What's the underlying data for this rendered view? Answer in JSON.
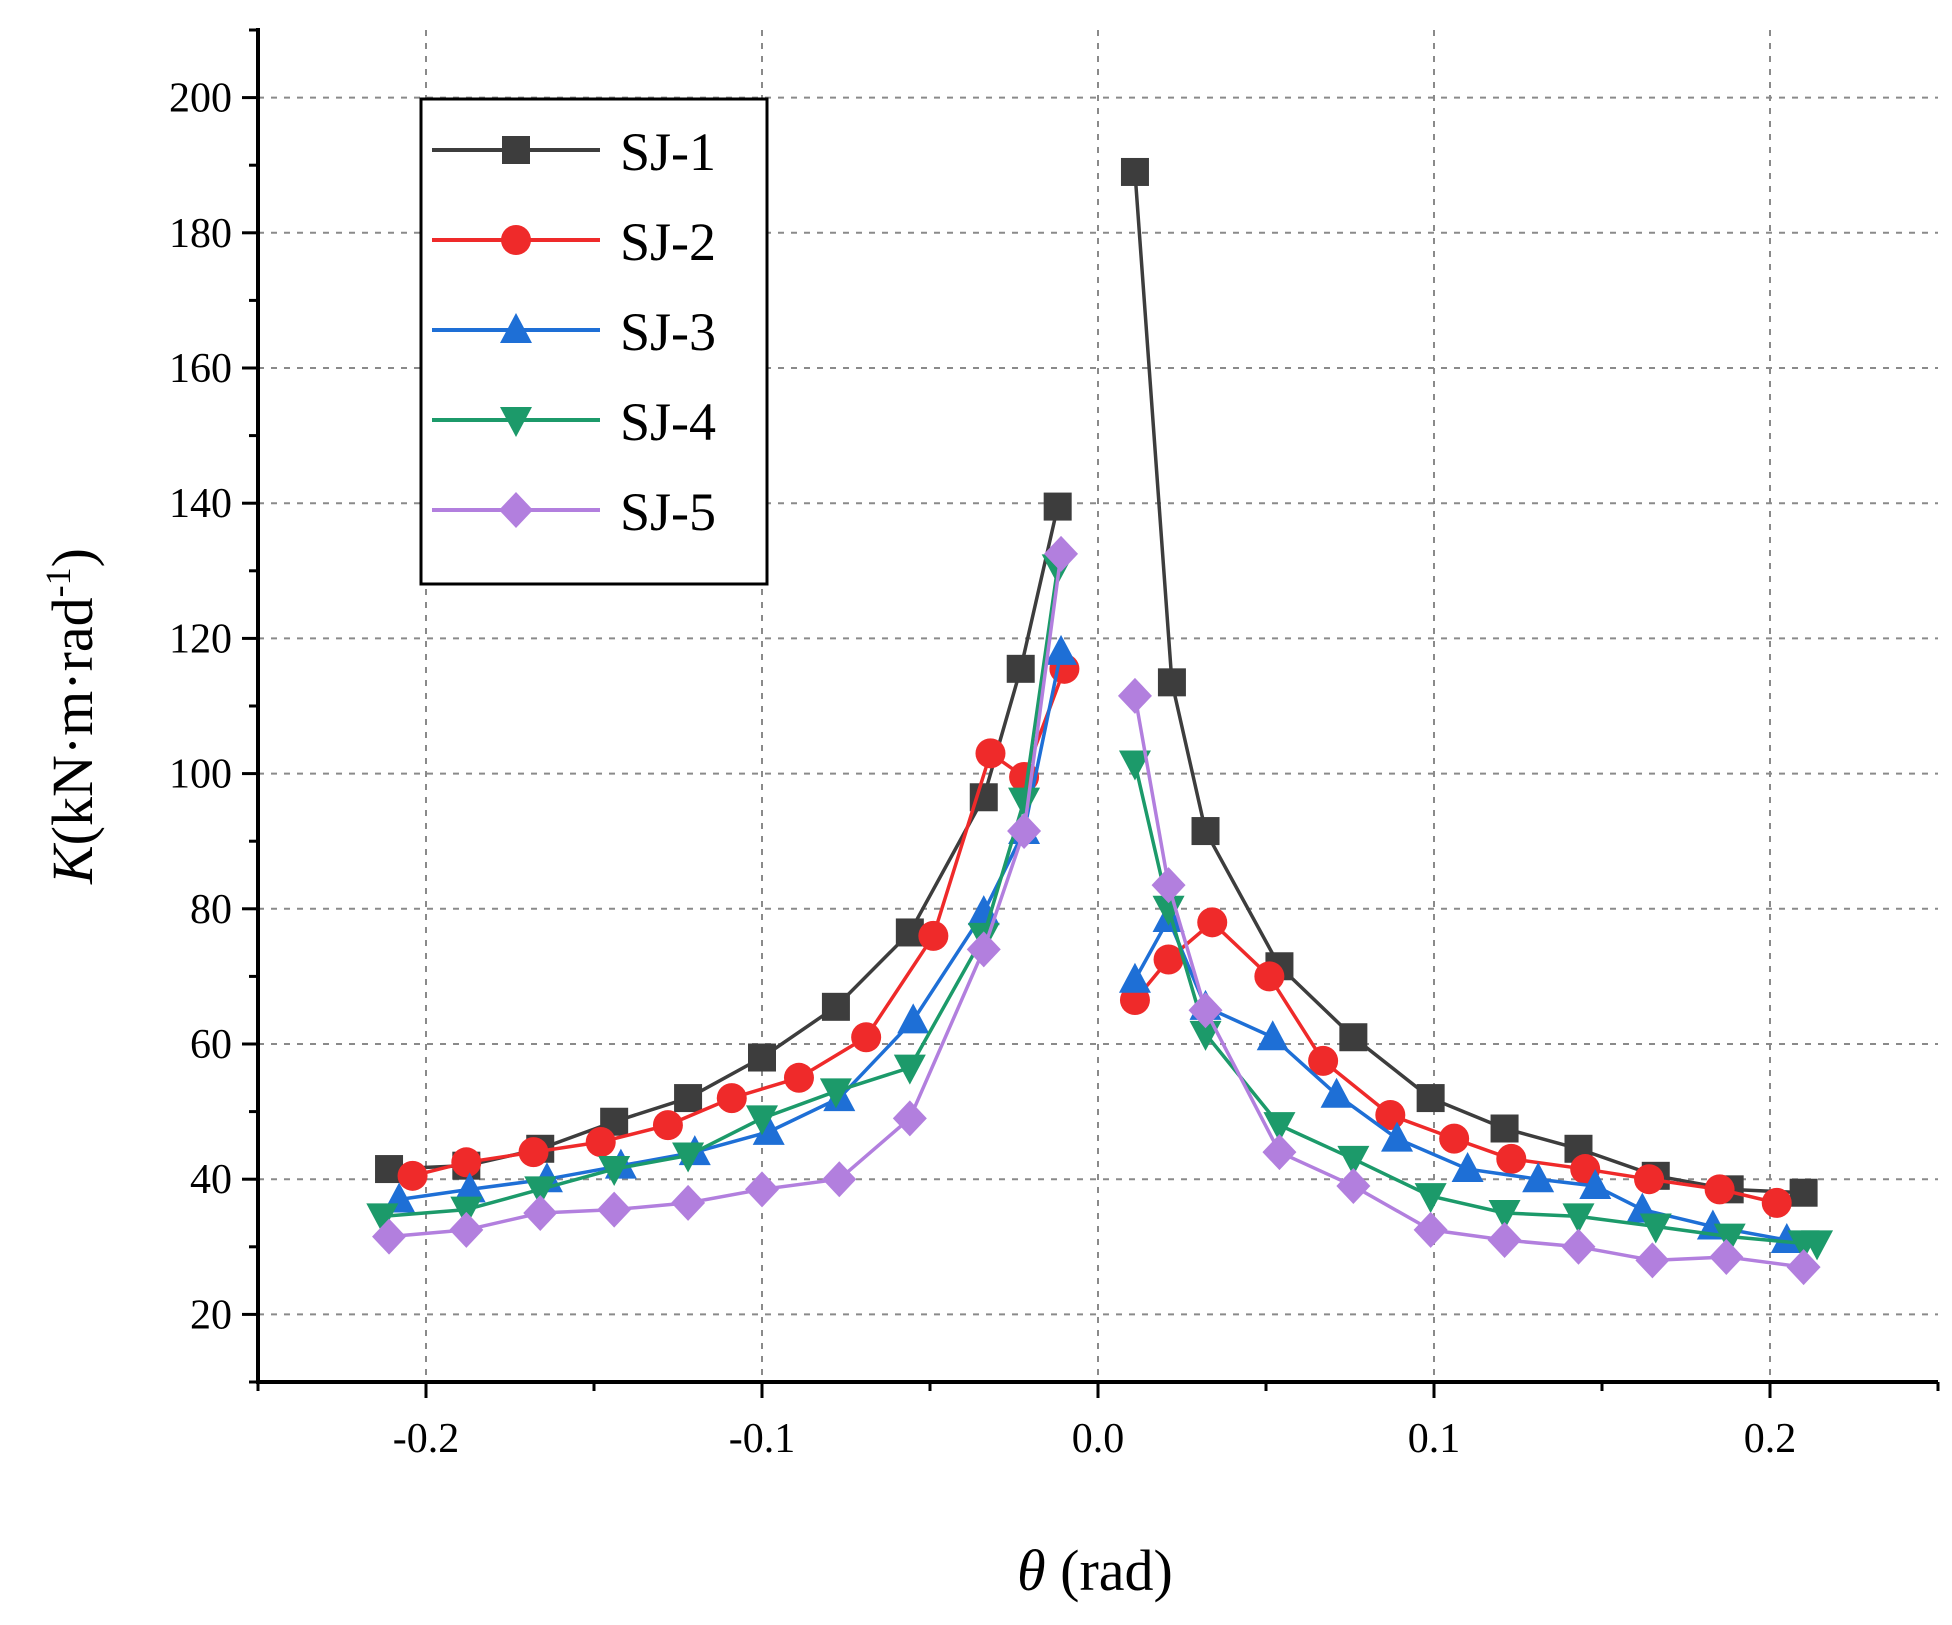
{
  "chart_data": {
    "type": "line",
    "xlabel": {
      "symbol": "θ",
      "unit": " (rad)"
    },
    "ylabel": {
      "symbol": "K",
      "unit": "(kN·m·rad",
      "sup": "-1",
      "close": ")"
    },
    "xlim": [
      -0.25,
      0.25
    ],
    "ylim": [
      10,
      210
    ],
    "x_ticks": [
      -0.2,
      -0.1,
      0.0,
      0.1,
      0.2
    ],
    "x_tick_labels": [
      "-0.2",
      "-0.1",
      "0.0",
      "0.1",
      "0.2"
    ],
    "y_ticks": [
      20,
      40,
      60,
      80,
      100,
      120,
      140,
      160,
      180,
      200
    ],
    "y_tick_labels": [
      "20",
      "40",
      "60",
      "80",
      "100",
      "120",
      "140",
      "160",
      "180",
      "200"
    ],
    "grid": true,
    "legend_position": "top-left",
    "series": [
      {
        "name": "SJ-1",
        "color": "#3d3d3d",
        "marker": "square",
        "negative": [
          [
            -0.211,
            41.5
          ],
          [
            -0.188,
            42
          ],
          [
            -0.166,
            44.5
          ],
          [
            -0.144,
            48.5
          ],
          [
            -0.122,
            52
          ],
          [
            -0.1,
            58
          ],
          [
            -0.078,
            65.5
          ],
          [
            -0.056,
            76.5
          ],
          [
            -0.034,
            96.5
          ],
          [
            -0.023,
            115.5
          ],
          [
            -0.012,
            139.5
          ]
        ],
        "positive": [
          [
            0.011,
            189
          ],
          [
            0.022,
            113.5
          ],
          [
            0.032,
            91.5
          ],
          [
            0.054,
            71.5
          ],
          [
            0.076,
            61
          ],
          [
            0.099,
            52
          ],
          [
            0.121,
            47.5
          ],
          [
            0.143,
            44.5
          ],
          [
            0.166,
            40.5
          ],
          [
            0.188,
            38.5
          ],
          [
            0.21,
            38
          ]
        ]
      },
      {
        "name": "SJ-2",
        "color": "#ef2a2a",
        "marker": "circle",
        "negative": [
          [
            -0.204,
            40.5
          ],
          [
            -0.188,
            42.5
          ],
          [
            -0.168,
            44
          ],
          [
            -0.148,
            45.5
          ],
          [
            -0.128,
            48
          ],
          [
            -0.109,
            52
          ],
          [
            -0.089,
            55
          ],
          [
            -0.069,
            61
          ],
          [
            -0.049,
            76
          ],
          [
            -0.032,
            103
          ],
          [
            -0.022,
            99.5
          ],
          [
            -0.01,
            115.5
          ]
        ],
        "positive": [
          [
            0.011,
            66.5
          ],
          [
            0.021,
            72.5
          ],
          [
            0.034,
            78
          ],
          [
            0.051,
            70
          ],
          [
            0.067,
            57.5
          ],
          [
            0.087,
            49.5
          ],
          [
            0.106,
            46
          ],
          [
            0.123,
            43
          ],
          [
            0.145,
            41.5
          ],
          [
            0.164,
            40
          ],
          [
            0.185,
            38.5
          ],
          [
            0.202,
            36.5
          ]
        ]
      },
      {
        "name": "SJ-3",
        "color": "#1e6fd6",
        "marker": "triangle-up",
        "negative": [
          [
            -0.208,
            37
          ],
          [
            -0.187,
            38.5
          ],
          [
            -0.164,
            40
          ],
          [
            -0.142,
            42
          ],
          [
            -0.12,
            44
          ],
          [
            -0.098,
            47
          ],
          [
            -0.077,
            52
          ],
          [
            -0.055,
            63.5
          ],
          [
            -0.034,
            79.5
          ],
          [
            -0.022,
            91.5
          ],
          [
            -0.011,
            118
          ]
        ],
        "positive": [
          [
            0.011,
            69.5
          ],
          [
            0.021,
            78.5
          ],
          [
            0.032,
            65.5
          ],
          [
            0.052,
            61
          ],
          [
            0.071,
            52.5
          ],
          [
            0.089,
            46
          ],
          [
            0.11,
            41.5
          ],
          [
            0.131,
            40
          ],
          [
            0.148,
            39
          ],
          [
            0.162,
            35.5
          ],
          [
            0.183,
            33
          ],
          [
            0.205,
            31
          ]
        ]
      },
      {
        "name": "SJ-4",
        "color": "#1c9a6a",
        "marker": "triangle-down",
        "negative": [
          [
            -0.213,
            34.5
          ],
          [
            -0.188,
            35.5
          ],
          [
            -0.166,
            38.5
          ],
          [
            -0.144,
            41.5
          ],
          [
            -0.122,
            43.5
          ],
          [
            -0.1,
            49
          ],
          [
            -0.078,
            53
          ],
          [
            -0.056,
            56.5
          ],
          [
            -0.034,
            76
          ],
          [
            -0.022,
            96
          ],
          [
            -0.012,
            130.5
          ]
        ],
        "positive": [
          [
            0.011,
            101.5
          ],
          [
            0.021,
            80
          ],
          [
            0.032,
            61.5
          ],
          [
            0.054,
            48
          ],
          [
            0.076,
            43
          ],
          [
            0.099,
            37.5
          ],
          [
            0.121,
            35
          ],
          [
            0.143,
            34.5
          ],
          [
            0.166,
            33
          ],
          [
            0.188,
            31.5
          ],
          [
            0.21,
            30.5
          ],
          [
            0.214,
            30.5
          ]
        ]
      },
      {
        "name": "SJ-5",
        "color": "#b27fde",
        "marker": "diamond",
        "negative": [
          [
            -0.211,
            31.5
          ],
          [
            -0.188,
            32.5
          ],
          [
            -0.166,
            35
          ],
          [
            -0.144,
            35.5
          ],
          [
            -0.122,
            36.5
          ],
          [
            -0.1,
            38.5
          ],
          [
            -0.077,
            40
          ],
          [
            -0.056,
            49
          ],
          [
            -0.034,
            74
          ],
          [
            -0.022,
            91.5
          ],
          [
            -0.011,
            132.5
          ]
        ],
        "positive": [
          [
            0.011,
            111.5
          ],
          [
            0.021,
            83.5
          ],
          [
            0.032,
            65
          ],
          [
            0.054,
            44
          ],
          [
            0.076,
            39
          ],
          [
            0.099,
            32.5
          ],
          [
            0.121,
            31
          ],
          [
            0.143,
            30
          ],
          [
            0.165,
            28
          ],
          [
            0.187,
            28.5
          ],
          [
            0.21,
            27
          ]
        ]
      }
    ]
  }
}
